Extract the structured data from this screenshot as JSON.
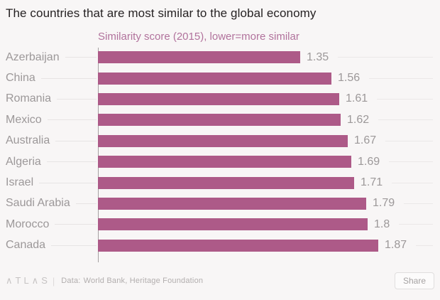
{
  "title": "The countries that are most similar to the global economy",
  "subtitle": "Similarity score (2015), lower=more similar",
  "chart_data": {
    "type": "bar",
    "orientation": "horizontal",
    "title": "The countries that are most similar to the global economy",
    "axis_label": "Similarity score (2015), lower=more similar",
    "categories": [
      "Azerbaijan",
      "China",
      "Romania",
      "Mexico",
      "Australia",
      "Algeria",
      "Israel",
      "Saudi Arabia",
      "Morocco",
      "Canada"
    ],
    "values": [
      1.35,
      1.56,
      1.61,
      1.62,
      1.67,
      1.69,
      1.71,
      1.79,
      1.8,
      1.87
    ],
    "value_labels": [
      "1.35",
      "1.56",
      "1.61",
      "1.62",
      "1.67",
      "1.69",
      "1.71",
      "1.79",
      "1.8",
      "1.87"
    ],
    "xlim": [
      0,
      2.24
    ],
    "grid": false,
    "legend": false,
    "data_labels_position": "end-of-bar"
  },
  "colors": {
    "background": "#f8f6f6",
    "bar": "#ad5a88",
    "subtitle": "#b1729c",
    "title_text": "#262223",
    "label_gray": "#9c9899",
    "axis_line": "#a5a1a2",
    "leader_line": "#e7e4e4"
  },
  "footer": {
    "logo": "∧TL∧S",
    "separator": "|",
    "source_label": "Data:",
    "source": "World Bank, Heritage Foundation",
    "share_label": "Share"
  }
}
